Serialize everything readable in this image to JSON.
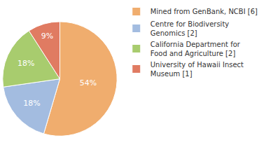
{
  "chart_data": {
    "type": "pie",
    "categories": [
      "Mined from GenBank, NCBI [6]",
      "Centre for Biodiversity Genomics [2]",
      "California Department for Food and Agriculture [2]",
      "University of Hawaii Insect Museum [1]"
    ],
    "values": [
      54,
      18,
      18,
      9
    ],
    "value_labels": [
      "54%",
      "18%",
      "18%",
      "9%"
    ],
    "colors": [
      "#f0ad6e",
      "#a3bce0",
      "#a8cc6e",
      "#e07b62"
    ],
    "data_labels": true,
    "legend": "right"
  }
}
